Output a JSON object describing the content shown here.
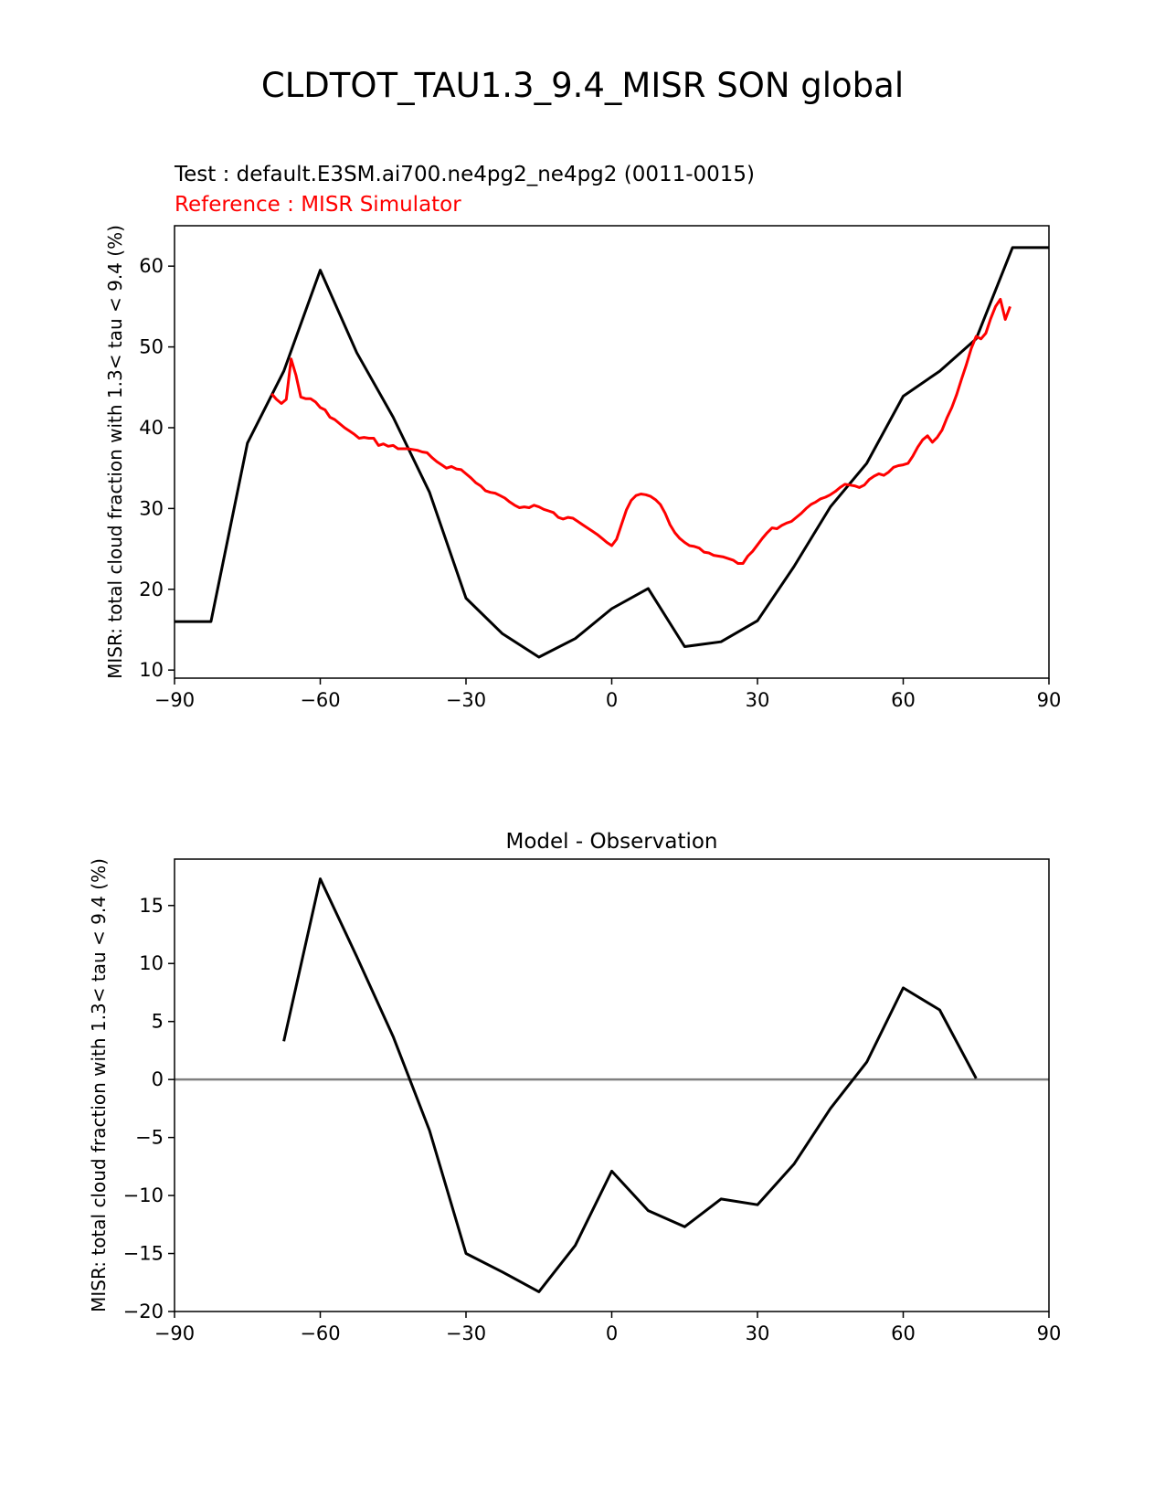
{
  "figure": {
    "title": "CLDTOT_TAU1.3_9.4_MISR SON global"
  },
  "chart_data": [
    {
      "type": "line",
      "test_label": "Test : default.E3SM.ai700.ne4pg2_ne4pg2 (0011-0015)",
      "reference_label": "Reference : MISR Simulator",
      "ylabel": "MISR: total cloud fraction with 1.3< tau < 9.4 (%)",
      "xlabel": "",
      "xlim": [
        -90,
        90
      ],
      "ylim": [
        9,
        65
      ],
      "xticks": [
        -90,
        -60,
        -30,
        0,
        30,
        60,
        90
      ],
      "xtick_labels": [
        "−90",
        "−60",
        "−30",
        "0",
        "30",
        "60",
        "90"
      ],
      "yticks": [
        10,
        20,
        30,
        40,
        50,
        60
      ],
      "ytick_labels": [
        "10",
        "20",
        "30",
        "40",
        "50",
        "60"
      ],
      "colors": {
        "test": "#000000",
        "reference": "#ff0000"
      },
      "series": [
        {
          "role": "test",
          "x": [
            -90,
            -82.5,
            -75,
            -67.5,
            -60,
            -52.5,
            -45,
            -37.5,
            -30,
            -22.5,
            -15,
            -7.5,
            0,
            7.5,
            15,
            22.5,
            30,
            37.5,
            45,
            52.5,
            60,
            67.5,
            75,
            82.5,
            90
          ],
          "y": [
            16.0,
            16.0,
            38.1,
            47.0,
            59.5,
            49.3,
            41.3,
            32.0,
            18.9,
            14.5,
            11.6,
            13.9,
            17.6,
            20.1,
            12.9,
            13.5,
            16.1,
            22.8,
            30.2,
            35.6,
            43.9,
            47.0,
            51.0,
            62.3,
            62.3
          ]
        },
        {
          "role": "reference",
          "x": [
            -70,
            -69,
            -68,
            -67,
            -66,
            -65,
            -64,
            -63,
            -62,
            -61,
            -60,
            -59,
            -58,
            -57,
            -56,
            -55,
            -54,
            -53,
            -52,
            -51,
            -50,
            -49,
            -48,
            -47,
            -46,
            -45,
            -44,
            -43,
            -42,
            -41,
            -40,
            -39,
            -38,
            -37,
            -36,
            -35,
            -34,
            -33,
            -32,
            -31,
            -30,
            -29,
            -28,
            -27,
            -26,
            -25,
            -24,
            -23,
            -22,
            -21,
            -20,
            -19,
            -18,
            -17,
            -16,
            -15,
            -14,
            -13,
            -12,
            -11,
            -10,
            -9,
            -8,
            -7,
            -6,
            -5,
            -4,
            -3,
            -2,
            -1,
            0,
            1,
            2,
            3,
            4,
            5,
            6,
            7,
            8,
            9,
            10,
            11,
            12,
            13,
            14,
            15,
            16,
            17,
            18,
            19,
            20,
            21,
            22,
            23,
            24,
            25,
            26,
            27,
            28,
            29,
            30,
            31,
            32,
            33,
            34,
            35,
            36,
            37,
            38,
            39,
            40,
            41,
            42,
            43,
            44,
            45,
            46,
            47,
            48,
            49,
            50,
            51,
            52,
            53,
            54,
            55,
            56,
            57,
            58,
            59,
            60,
            61,
            62,
            63,
            64,
            65,
            66,
            67,
            68,
            69,
            70,
            71,
            72,
            73,
            74,
            75,
            76,
            77,
            78,
            79,
            80,
            81,
            82
          ],
          "y": [
            44.2,
            43.5,
            43.0,
            43.5,
            48.5,
            46.5,
            43.8,
            43.6,
            43.6,
            43.2,
            42.5,
            42.2,
            41.3,
            41.0,
            40.5,
            40.0,
            39.6,
            39.2,
            38.7,
            38.8,
            38.7,
            38.7,
            37.8,
            38.0,
            37.7,
            37.8,
            37.4,
            37.4,
            37.4,
            37.3,
            37.2,
            37.0,
            36.9,
            36.3,
            35.8,
            35.4,
            35.0,
            35.2,
            34.9,
            34.8,
            34.3,
            33.8,
            33.2,
            32.8,
            32.2,
            32.0,
            31.9,
            31.6,
            31.3,
            30.8,
            30.4,
            30.1,
            30.2,
            30.1,
            30.4,
            30.2,
            29.9,
            29.7,
            29.5,
            28.9,
            28.7,
            28.9,
            28.8,
            28.4,
            28.0,
            27.6,
            27.2,
            26.8,
            26.3,
            25.8,
            25.4,
            26.2,
            28.0,
            29.8,
            31.0,
            31.6,
            31.8,
            31.7,
            31.5,
            31.1,
            30.5,
            29.4,
            28.0,
            27.0,
            26.3,
            25.8,
            25.4,
            25.3,
            25.1,
            24.6,
            24.5,
            24.2,
            24.1,
            24.0,
            23.8,
            23.6,
            23.2,
            23.2,
            24.1,
            24.7,
            25.5,
            26.3,
            27.0,
            27.6,
            27.5,
            27.9,
            28.2,
            28.4,
            28.9,
            29.4,
            30.0,
            30.5,
            30.8,
            31.2,
            31.4,
            31.7,
            32.1,
            32.6,
            33.0,
            32.9,
            32.8,
            32.6,
            32.9,
            33.6,
            34.0,
            34.3,
            34.1,
            34.5,
            35.1,
            35.3,
            35.4,
            35.6,
            36.5,
            37.6,
            38.5,
            39.0,
            38.2,
            38.8,
            39.7,
            41.2,
            42.5,
            44.1,
            46.0,
            47.8,
            49.8,
            51.3,
            51.0,
            51.7,
            53.5,
            55.0,
            55.9,
            53.4,
            55.0
          ]
        }
      ]
    },
    {
      "type": "line",
      "title": "Model - Observation",
      "ylabel": "MISR: total cloud fraction with 1.3< tau < 9.4 (%)",
      "xlabel": "",
      "xlim": [
        -90,
        90
      ],
      "ylim": [
        -20,
        19
      ],
      "xticks": [
        -90,
        -60,
        -30,
        0,
        30,
        60,
        90
      ],
      "xtick_labels": [
        "−90",
        "−60",
        "−30",
        "0",
        "30",
        "60",
        "90"
      ],
      "yticks": [
        -20,
        -15,
        -10,
        -5,
        0,
        5,
        10,
        15
      ],
      "ytick_labels": [
        "−20",
        "−15",
        "−10",
        "−5",
        "0",
        "5",
        "10",
        "15"
      ],
      "colors": {
        "diff": "#000000",
        "zero_line": "#808080"
      },
      "zero_line": 0,
      "series": [
        {
          "role": "diff",
          "x": [
            -67.5,
            -60,
            -52.5,
            -45,
            -37.5,
            -30,
            -22.5,
            -15,
            -7.5,
            0,
            7.5,
            15,
            22.5,
            30,
            37.5,
            45,
            52.5,
            60,
            67.5,
            75
          ],
          "y": [
            3.3,
            17.3,
            10.6,
            3.7,
            -4.4,
            -15.0,
            -16.6,
            -18.3,
            -14.3,
            -7.9,
            -11.3,
            -12.7,
            -10.3,
            -10.8,
            -7.3,
            -2.5,
            1.5,
            7.9,
            6.0,
            0.1
          ]
        }
      ]
    }
  ]
}
